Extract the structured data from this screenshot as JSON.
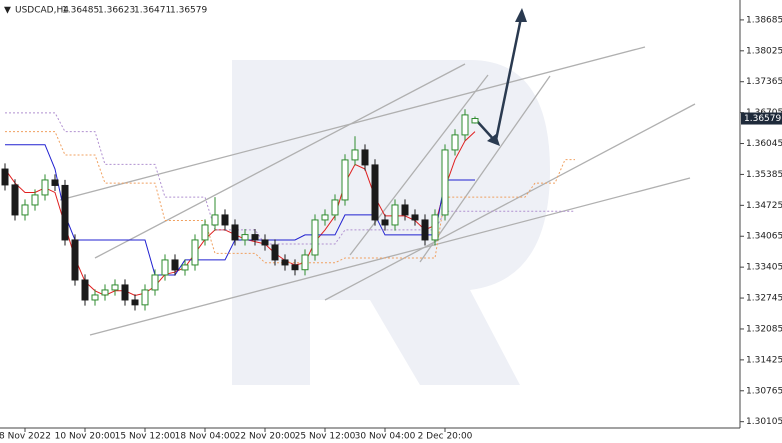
{
  "chart_data": {
    "type": "candlestick",
    "title": "USDCAD,H4",
    "header_values": [
      1.36485,
      1.36623,
      1.36471,
      1.36579
    ],
    "last_price": 1.36579,
    "up_color": "#2e8b2e",
    "down_color": "#1a1a1a",
    "categories": [
      null,
      null,
      "8 Nov 2022",
      null,
      null,
      null,
      null,
      null,
      "10 Nov 20:00",
      null,
      null,
      null,
      null,
      null,
      "15 Nov 12:00",
      null,
      null,
      null,
      null,
      null,
      "18 Nov 04:00",
      null,
      null,
      null,
      null,
      null,
      "22 Nov 20:00",
      null,
      null,
      null,
      null,
      null,
      "25 Nov 12:00",
      null,
      null,
      null,
      null,
      null,
      "30 Nov 04:00",
      null,
      null,
      null,
      null,
      null,
      "2 Dec 20:00",
      null,
      null,
      null,
      null,
      null,
      null,
      null,
      null,
      null,
      null,
      null,
      null,
      null
    ],
    "open": [
      1.355,
      1.35161,
      1.3452,
      1.34733,
      1.34947,
      1.35267,
      1.3515,
      1.33986,
      1.33131,
      1.32704,
      1.32811,
      1.32918,
      1.33025,
      1.32704,
      1.326,
      1.32918,
      1.33238,
      1.33559,
      1.33345,
      1.33452,
      1.33986,
      1.34306,
      1.3452,
      1.34306,
      1.33986,
      1.341,
      1.33986,
      1.33879,
      1.33559,
      1.33452,
      1.3335,
      1.33665,
      1.34413,
      1.3452,
      1.3484,
      1.35695,
      1.35908,
      1.35588,
      1.34413,
      1.34306,
      1.34733,
      1.3452,
      1.34413,
      1.33986,
      1.3452,
      1.35908,
      1.36229,
      1.36485,
      null,
      null,
      null,
      null,
      null,
      null,
      null,
      null,
      null,
      null
    ],
    "high": [
      1.3562,
      1.35281,
      1.34853,
      1.35067,
      1.35387,
      1.35387,
      1.3527,
      1.34106,
      1.33251,
      1.32931,
      1.33038,
      1.33145,
      1.33145,
      1.32824,
      1.33038,
      1.33358,
      1.33679,
      1.33679,
      1.33572,
      1.34106,
      1.34426,
      1.349,
      1.3464,
      1.34426,
      1.3422,
      1.3422,
      1.34106,
      1.33999,
      1.33679,
      1.33572,
      1.33785,
      1.34533,
      1.3464,
      1.3496,
      1.35815,
      1.362,
      1.36028,
      1.35708,
      1.34533,
      1.34853,
      1.34853,
      1.3464,
      1.34533,
      1.3464,
      1.36028,
      1.36349,
      1.36776,
      1.36623,
      null,
      null,
      null,
      null,
      null,
      null,
      null,
      null,
      null,
      null
    ],
    "low": [
      1.35041,
      1.344,
      1.344,
      1.34613,
      1.34827,
      1.3503,
      1.33866,
      1.33011,
      1.32584,
      1.32584,
      1.32691,
      1.32798,
      1.32584,
      1.3248,
      1.3248,
      1.32798,
      1.33118,
      1.33225,
      1.33225,
      1.33332,
      1.33866,
      1.34186,
      1.34186,
      1.33866,
      1.33866,
      1.33866,
      1.33759,
      1.33439,
      1.33332,
      1.3323,
      1.3323,
      1.33545,
      1.34293,
      1.344,
      1.3472,
      1.35575,
      1.35468,
      1.34293,
      1.34186,
      1.34186,
      1.344,
      1.34293,
      1.33866,
      1.33866,
      1.344,
      1.35788,
      1.36109,
      1.36471,
      null,
      null,
      null,
      null,
      null,
      null,
      null,
      null,
      null,
      null
    ],
    "close": [
      1.35161,
      1.3452,
      1.34733,
      1.34947,
      1.35267,
      1.3515,
      1.33986,
      1.33131,
      1.32704,
      1.32811,
      1.32918,
      1.33025,
      1.32704,
      1.326,
      1.32918,
      1.33238,
      1.33559,
      1.33345,
      1.33452,
      1.33986,
      1.34306,
      1.3452,
      1.34306,
      1.33986,
      1.341,
      1.33986,
      1.33879,
      1.33559,
      1.33452,
      1.3335,
      1.33665,
      1.34413,
      1.3452,
      1.3484,
      1.35695,
      1.35908,
      1.35588,
      1.34413,
      1.34306,
      1.34733,
      1.3452,
      1.34413,
      1.33986,
      1.3452,
      1.35908,
      1.36229,
      1.36656,
      1.36579,
      null,
      null,
      null,
      null,
      null,
      null,
      null,
      null,
      null,
      null
    ],
    "series": [
      {
        "color": "#e02020",
        "style": "solid",
        "values": [
          1.355,
          1.352,
          1.35,
          1.35,
          1.351,
          1.35,
          1.343,
          1.336,
          1.331,
          1.329,
          1.328,
          1.329,
          1.329,
          1.328,
          1.3285,
          1.33,
          1.3325,
          1.333,
          1.334,
          1.337,
          1.34,
          1.342,
          1.342,
          1.341,
          1.34,
          1.3395,
          1.339,
          1.337,
          1.3355,
          1.3345,
          1.335,
          1.3395,
          1.342,
          1.345,
          1.352,
          1.356,
          1.355,
          1.349,
          1.345,
          1.345,
          1.345,
          1.344,
          1.342,
          1.343,
          1.351,
          1.357,
          1.361,
          1.363,
          null,
          null,
          null,
          null,
          null,
          null,
          null,
          null,
          null,
          null
        ]
      },
      {
        "color": "#2020d0",
        "style": "solid",
        "values": [
          1.3602,
          1.3602,
          1.3602,
          1.3602,
          1.3602,
          1.355,
          1.3452,
          1.33986,
          1.33986,
          1.33986,
          1.33986,
          1.33986,
          1.33986,
          1.33986,
          1.33986,
          1.33238,
          1.33238,
          1.33238,
          1.33559,
          1.33559,
          1.33559,
          1.33559,
          1.33559,
          1.33986,
          1.33986,
          1.33986,
          1.33986,
          1.33986,
          1.33986,
          1.33986,
          1.34093,
          1.34093,
          1.34093,
          1.34093,
          1.3452,
          1.3452,
          1.3452,
          1.3452,
          1.34093,
          1.34093,
          1.34093,
          1.34093,
          1.34093,
          1.34093,
          1.35267,
          1.35267,
          1.35267,
          1.35267,
          null,
          null,
          null,
          null,
          null,
          null,
          null,
          null,
          null,
          null
        ]
      },
      {
        "color": "#f0a060",
        "style": "dotted",
        "values": [
          1.363,
          1.363,
          1.363,
          1.363,
          1.363,
          1.363,
          1.358,
          1.358,
          1.358,
          1.358,
          1.352,
          1.352,
          1.352,
          1.352,
          1.352,
          1.352,
          1.344,
          1.344,
          1.344,
          1.344,
          1.344,
          1.337,
          1.337,
          1.337,
          1.337,
          1.337,
          1.335,
          1.335,
          1.335,
          1.335,
          1.335,
          1.335,
          1.335,
          1.335,
          1.336,
          1.336,
          1.336,
          1.336,
          1.336,
          1.336,
          1.336,
          1.336,
          1.336,
          1.336,
          1.349,
          1.349,
          1.349,
          1.349,
          1.349,
          1.349,
          1.349,
          1.349,
          1.349,
          1.352,
          1.352,
          1.352,
          1.357,
          1.357
        ]
      },
      {
        "color": "#b090d0",
        "style": "dotted",
        "values": [
          1.367,
          1.367,
          1.367,
          1.367,
          1.367,
          1.367,
          1.363,
          1.363,
          1.363,
          1.363,
          1.356,
          1.356,
          1.356,
          1.356,
          1.356,
          1.356,
          1.349,
          1.349,
          1.349,
          1.349,
          1.349,
          1.342,
          1.342,
          1.342,
          1.342,
          1.342,
          1.339,
          1.339,
          1.339,
          1.339,
          1.339,
          1.339,
          1.339,
          1.339,
          1.342,
          1.342,
          1.342,
          1.342,
          1.342,
          1.342,
          1.342,
          1.342,
          1.342,
          1.342,
          1.346,
          1.346,
          1.346,
          1.346,
          1.346,
          1.346,
          1.346,
          1.346,
          1.346,
          1.346,
          1.346,
          1.346,
          1.346,
          1.346
        ]
      }
    ],
    "ylim": [
      1.2997,
      1.3911
    ],
    "yticks": [
      1.38685,
      1.38025,
      1.37365,
      1.36705,
      1.36045,
      1.35385,
      1.34725,
      1.34065,
      1.33405,
      1.32745,
      1.32085,
      1.31425,
      1.30765,
      1.30105
    ]
  }
}
